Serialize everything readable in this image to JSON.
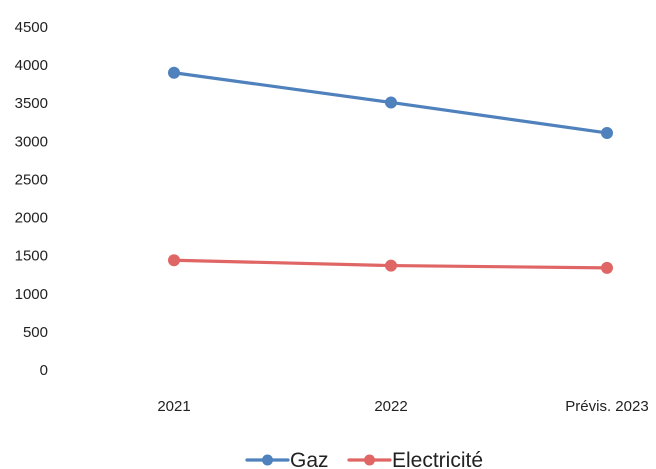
{
  "chart_data": {
    "type": "line",
    "categories": [
      "2021",
      "2022",
      "Prévis. 2023"
    ],
    "series": [
      {
        "name": "Gaz",
        "values": [
          3900,
          3510,
          3110
        ],
        "color": "#4f81bd"
      },
      {
        "name": "Electricité",
        "values": [
          1440,
          1370,
          1340
        ],
        "color": "#e06666"
      }
    ],
    "yticks": [
      0,
      500,
      1000,
      1500,
      2000,
      2500,
      3000,
      3500,
      4000,
      4500
    ],
    "ylim": [
      0,
      4500
    ],
    "grid": false,
    "legend_position": "bottom"
  }
}
